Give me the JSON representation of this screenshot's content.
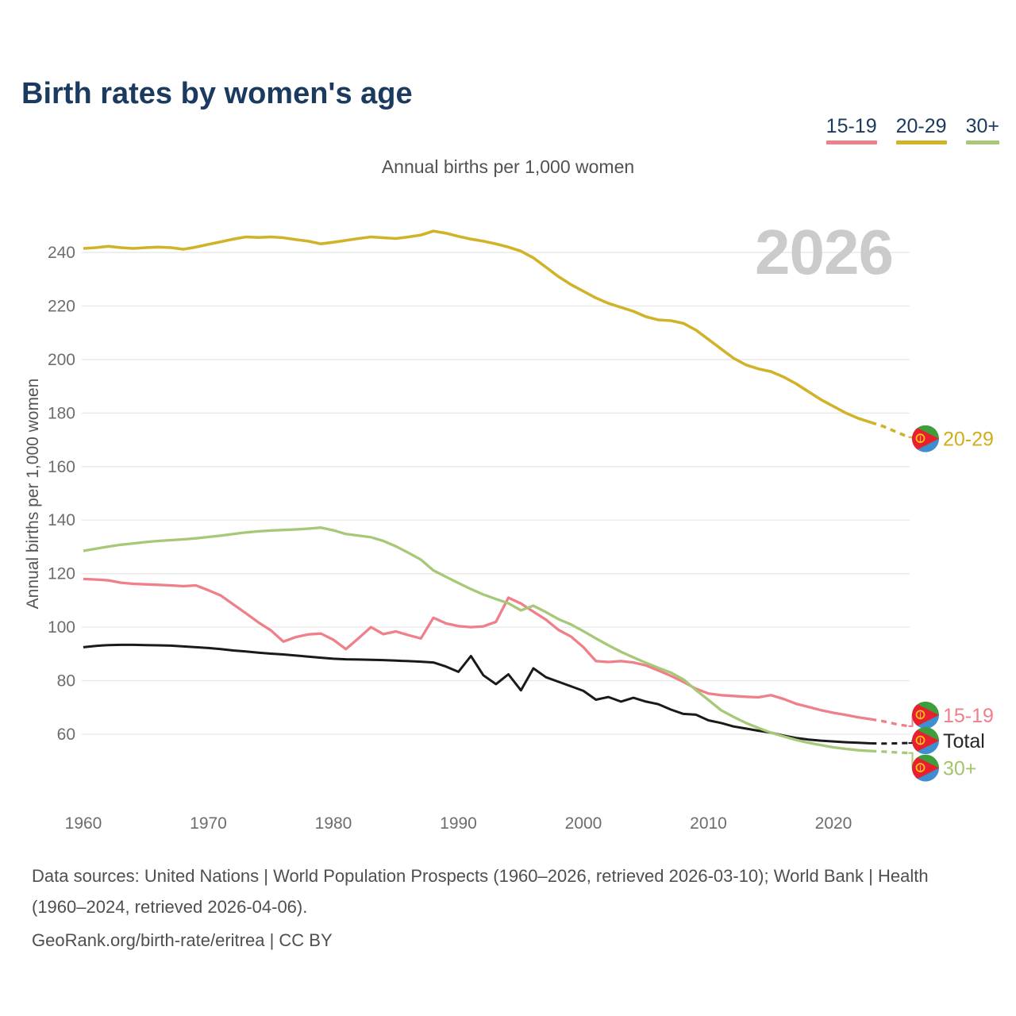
{
  "page": {
    "title": "Birth rates by women's age",
    "subtitle": "Annual births per 1,000 women",
    "y_axis_title": "Annual births per 1,000 women",
    "watermark": "2026",
    "footer_sources": "Data sources: United Nations | World Population Prospects (1960–2026, retrieved 2026-03-10); World Bank | Health (1960–2024, retrieved 2026-04-06).",
    "footer_attribution": "GeoRank.org/birth-rate/eritrea | CC BY"
  },
  "colors": {
    "title_navy": "#1b3a5f",
    "legend_text": "#1d3a5e",
    "axis_text": "#6d6d6d",
    "muted_text": "#525252",
    "gridline": "#e8e8e8",
    "watermark": "#cbcbcb",
    "flag_green": "#3f9e3c",
    "flag_blue": "#3e8ed0",
    "flag_red": "#e8202d",
    "flag_yellow": "#fec01e"
  },
  "chart_data": {
    "type": "line",
    "title": "Birth rates by women's age",
    "ylabel": "Annual births per 1,000 women",
    "xlabel": "",
    "grid": "horizontal",
    "legend_position": "top-right",
    "ylim": [
      48,
      252
    ],
    "x_range": [
      1960,
      2026
    ],
    "dash_from_year": 2023,
    "x_ticks": [
      1960,
      1970,
      1980,
      1990,
      2000,
      2010,
      2020
    ],
    "y_ticks": [
      60,
      80,
      100,
      120,
      140,
      160,
      180,
      200,
      220,
      240
    ],
    "years": [
      1960,
      1961,
      1962,
      1963,
      1964,
      1965,
      1966,
      1967,
      1968,
      1969,
      1970,
      1971,
      1972,
      1973,
      1974,
      1975,
      1976,
      1977,
      1978,
      1979,
      1980,
      1981,
      1982,
      1983,
      1984,
      1985,
      1986,
      1987,
      1988,
      1989,
      1990,
      1991,
      1992,
      1993,
      1994,
      1995,
      1996,
      1997,
      1998,
      1999,
      2000,
      2001,
      2002,
      2003,
      2004,
      2005,
      2006,
      2007,
      2008,
      2009,
      2010,
      2011,
      2012,
      2013,
      2014,
      2015,
      2016,
      2017,
      2018,
      2019,
      2020,
      2021,
      2022,
      2023,
      2024,
      2025,
      2026
    ],
    "series": [
      {
        "id": "s1519",
        "name": "15-19",
        "color": "#ef8089",
        "label_color": "#ef7f89",
        "in_legend": true,
        "values": [
          118.0,
          117.8,
          117.5,
          116.6,
          116.2,
          116.0,
          115.8,
          115.6,
          115.3,
          115.6,
          113.8,
          111.8,
          108.5,
          105.2,
          101.8,
          98.8,
          94.6,
          96.3,
          97.3,
          97.6,
          95.3,
          91.8,
          95.8,
          100.0,
          97.4,
          98.4,
          97.0,
          95.8,
          103.5,
          101.4,
          100.4,
          100.0,
          100.3,
          102.0,
          111.0,
          108.8,
          105.8,
          102.8,
          99.0,
          96.5,
          92.5,
          87.3,
          87.0,
          87.3,
          86.8,
          85.7,
          83.8,
          81.8,
          79.5,
          77.0,
          75.2,
          74.6,
          74.3,
          74.0,
          73.8,
          74.6,
          73.2,
          71.4,
          70.2,
          69.0,
          68.0,
          67.2,
          66.3,
          65.6,
          64.8,
          63.8,
          63.0
        ]
      },
      {
        "id": "s2029",
        "name": "20-29",
        "color": "#d1b32a",
        "label_color": "#cfae1b",
        "in_legend": true,
        "values": [
          241.5,
          241.8,
          242.3,
          241.8,
          241.5,
          241.8,
          242.0,
          241.8,
          241.2,
          242.0,
          243.0,
          244.0,
          245.0,
          245.8,
          245.6,
          245.8,
          245.5,
          244.8,
          244.2,
          243.2,
          243.8,
          244.5,
          245.2,
          245.8,
          245.5,
          245.2,
          245.8,
          246.5,
          248.0,
          247.2,
          246.0,
          245.0,
          244.2,
          243.2,
          242.0,
          240.5,
          238.0,
          234.5,
          231.0,
          228.0,
          225.5,
          223.0,
          221.0,
          219.5,
          218.0,
          216.0,
          214.8,
          214.5,
          213.5,
          211.0,
          207.5,
          204.0,
          200.5,
          198.0,
          196.5,
          195.5,
          193.5,
          191.0,
          188.0,
          185.0,
          182.5,
          180.0,
          178.0,
          176.5,
          175.0,
          173.0,
          171.0
        ]
      },
      {
        "id": "stotal",
        "name": "Total",
        "color": "#1a1a1a",
        "label_color": "#262626",
        "in_legend": false,
        "values": [
          92.5,
          93.0,
          93.3,
          93.4,
          93.4,
          93.3,
          93.2,
          93.1,
          92.8,
          92.5,
          92.2,
          91.8,
          91.3,
          90.9,
          90.5,
          90.1,
          89.8,
          89.4,
          89.0,
          88.6,
          88.2,
          88.0,
          87.9,
          87.8,
          87.7,
          87.5,
          87.3,
          87.1,
          86.8,
          85.3,
          83.3,
          89.2,
          82.0,
          78.7,
          82.4,
          76.4,
          84.6,
          81.3,
          79.6,
          77.9,
          76.2,
          72.9,
          73.9,
          72.2,
          73.6,
          72.2,
          71.2,
          69.2,
          67.6,
          67.3,
          65.2,
          64.2,
          62.9,
          62.1,
          61.3,
          60.6,
          59.5,
          58.6,
          58.0,
          57.6,
          57.3,
          57.0,
          56.8,
          56.6,
          56.5,
          56.6,
          56.7
        ]
      },
      {
        "id": "s30plus",
        "name": "30+",
        "color": "#a7c877",
        "label_color": "#a3c46b",
        "in_legend": true,
        "values": [
          128.5,
          129.3,
          130.1,
          130.8,
          131.3,
          131.8,
          132.2,
          132.5,
          132.8,
          133.2,
          133.7,
          134.2,
          134.8,
          135.4,
          135.8,
          136.1,
          136.3,
          136.5,
          136.8,
          137.2,
          136.2,
          134.8,
          134.2,
          133.6,
          132.2,
          130.2,
          127.8,
          125.2,
          121.2,
          118.8,
          116.5,
          114.2,
          112.2,
          110.5,
          108.9,
          106.3,
          108.0,
          105.6,
          103.0,
          101.0,
          98.5,
          95.8,
          93.2,
          90.8,
          88.7,
          86.7,
          84.8,
          83.0,
          80.5,
          76.5,
          72.8,
          69.0,
          66.5,
          64.2,
          62.3,
          60.6,
          59.2,
          57.9,
          56.8,
          55.9,
          55.1,
          54.5,
          54.0,
          53.7,
          53.5,
          53.2,
          53.0
        ]
      }
    ]
  }
}
